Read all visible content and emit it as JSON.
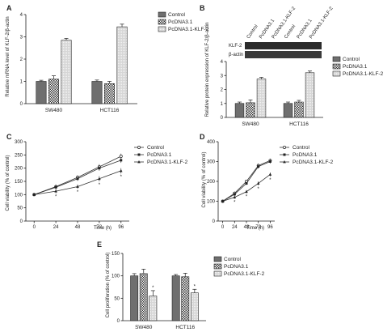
{
  "figure_labels": [
    "A",
    "B",
    "C",
    "D",
    "E"
  ],
  "chart_data": [
    {
      "panel": "A",
      "type": "bar",
      "ylabel": "Relative mRNA level of KLF-2/β-actin",
      "ylim": [
        0,
        4
      ],
      "yticks": [
        0,
        1,
        2,
        3,
        4
      ],
      "categories": [
        "SW480",
        "HCT116"
      ],
      "legend": "top-right",
      "series": [
        {
          "name": "Control",
          "values": [
            1.0,
            1.0
          ],
          "errors": [
            0.05,
            0.06
          ],
          "fill": "solid"
        },
        {
          "name": "PcDNA3.1",
          "values": [
            1.1,
            0.9
          ],
          "errors": [
            0.15,
            0.1
          ],
          "fill": "check"
        },
        {
          "name": "PcDNA3.1-KLF-2",
          "values": [
            2.85,
            3.45
          ],
          "errors": [
            0.08,
            0.12
          ],
          "fill": "light"
        }
      ]
    },
    {
      "panel": "B",
      "type": "bar",
      "ylabel": "Relative protein expression of KLF-2/β-actin",
      "ylim": [
        0,
        4
      ],
      "yticks": [
        0,
        1,
        2,
        3,
        4
      ],
      "categories": [
        "SW480",
        "HCT116"
      ],
      "legend": "top-right",
      "blot": {
        "lanes": [
          "Control",
          "PcDNA3.1",
          "PcDNA3.1-KLF-2",
          "Control",
          "PcDNA3.1",
          "PcDNA3.1-KLF-2"
        ],
        "rows": [
          "KLF-2",
          "β-actin"
        ]
      },
      "series": [
        {
          "name": "Control",
          "values": [
            1.0,
            1.0
          ],
          "errors": [
            0.1,
            0.1
          ],
          "fill": "solid"
        },
        {
          "name": "PcDNA3.1",
          "values": [
            1.05,
            1.1
          ],
          "errors": [
            0.2,
            0.12
          ],
          "fill": "check"
        },
        {
          "name": "PcDNA3.1-KLF-2",
          "values": [
            2.75,
            3.2
          ],
          "errors": [
            0.12,
            0.12
          ],
          "fill": "light"
        }
      ]
    },
    {
      "panel": "C",
      "type": "line",
      "ylabel": "Cell viability (% of control)",
      "xlabel": "Time (h)",
      "ylim": [
        0,
        300
      ],
      "yticks": [
        0,
        50,
        100,
        150,
        200,
        250,
        300
      ],
      "x": [
        0,
        24,
        48,
        72,
        96
      ],
      "legend": "top-right",
      "series": [
        {
          "name": "Control",
          "values": [
            100,
            130,
            165,
            205,
            245
          ],
          "errors": [
            5,
            8,
            8,
            10,
            10
          ],
          "marker": "circle"
        },
        {
          "name": "PcDNA3.1",
          "values": [
            100,
            128,
            160,
            200,
            230
          ],
          "errors": [
            5,
            8,
            8,
            10,
            10
          ],
          "marker": "square"
        },
        {
          "name": "PcDNA3.1-KLF-2",
          "values": [
            100,
            113,
            130,
            160,
            190
          ],
          "errors": [
            5,
            8,
            8,
            10,
            10
          ],
          "marker": "triangle"
        }
      ],
      "annotations": [
        "*",
        "*",
        "*",
        "*"
      ]
    },
    {
      "panel": "D",
      "type": "line",
      "ylabel": "Cell viability (% of control)",
      "xlabel": "Time (h)",
      "ylim": [
        0,
        400
      ],
      "yticks": [
        0,
        100,
        200,
        300,
        400
      ],
      "x": [
        0,
        24,
        48,
        72,
        96
      ],
      "legend": "top-right",
      "series": [
        {
          "name": "Control",
          "values": [
            100,
            140,
            200,
            280,
            305
          ],
          "errors": [
            5,
            8,
            8,
            10,
            10
          ],
          "marker": "circle"
        },
        {
          "name": "PcDNA3.1",
          "values": [
            100,
            135,
            190,
            275,
            300
          ],
          "errors": [
            5,
            8,
            8,
            10,
            10
          ],
          "marker": "square"
        },
        {
          "name": "PcDNA3.1-KLF-2",
          "values": [
            100,
            120,
            148,
            190,
            235
          ],
          "errors": [
            5,
            8,
            8,
            10,
            10
          ],
          "marker": "triangle"
        }
      ],
      "annotations": [
        "*",
        "*",
        "*",
        "*"
      ]
    },
    {
      "panel": "E",
      "type": "bar",
      "ylabel": "Cell proliferation (% of control)",
      "ylim": [
        0,
        150
      ],
      "yticks": [
        0,
        50,
        100,
        150
      ],
      "categories": [
        "SW480",
        "HCT116"
      ],
      "legend": "top-right",
      "series": [
        {
          "name": "Control",
          "values": [
            100,
            100
          ],
          "errors": [
            5,
            3
          ],
          "fill": "solid"
        },
        {
          "name": "PcDNA3.1",
          "values": [
            105,
            98
          ],
          "errors": [
            10,
            8
          ],
          "fill": "check"
        },
        {
          "name": "PcDNA3.1-KLF-2",
          "values": [
            55,
            62
          ],
          "errors": [
            12,
            8
          ],
          "fill": "light"
        }
      ],
      "annotations": [
        "*",
        "*"
      ]
    }
  ]
}
